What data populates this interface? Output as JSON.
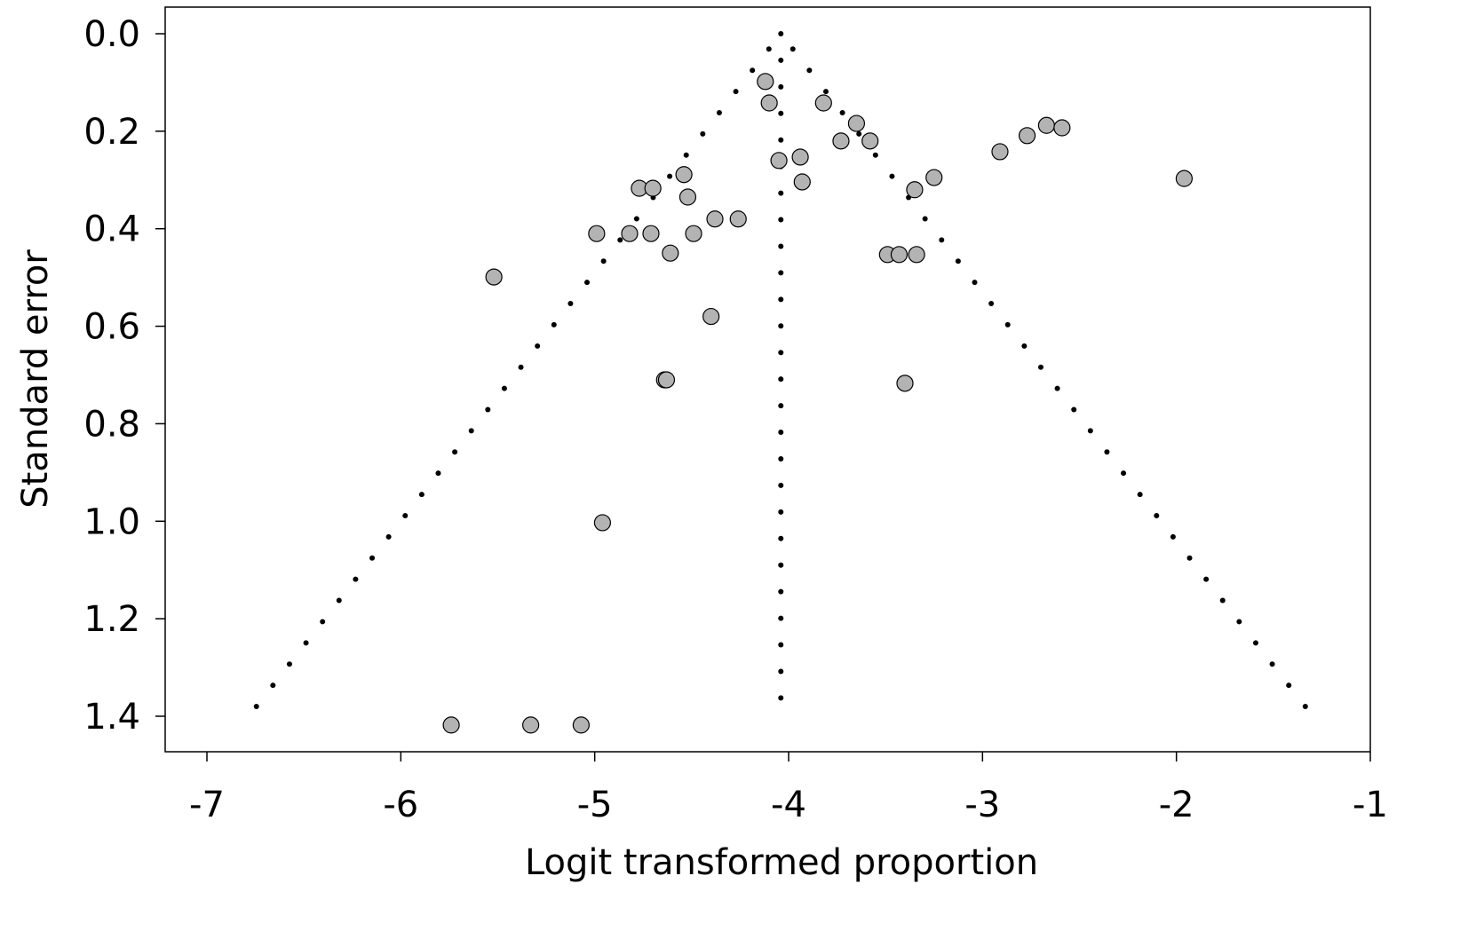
{
  "chart_data": {
    "type": "scatter",
    "title": "",
    "xlabel": "Logit transformed proportion",
    "ylabel": "Standard error",
    "xlim": [
      -7,
      -1
    ],
    "ylim": [
      0,
      1.4
    ],
    "y_inverted": true,
    "xticks": [
      -7,
      -6,
      -5,
      -4,
      -3,
      -2,
      -1
    ],
    "xtick_labels": [
      "-7",
      "-6",
      "-5",
      "-4",
      "-3",
      "-2",
      "-1"
    ],
    "yticks": [
      0,
      0.2,
      0.4,
      0.6,
      0.8,
      1.0,
      1.2,
      1.4
    ],
    "ytick_labels": [
      "0.0",
      "0.2",
      "0.4",
      "0.6",
      "0.8",
      "1.0",
      "1.2",
      "1.4"
    ],
    "grid": false,
    "funnel": {
      "center": -4.04,
      "z": 1.96,
      "max_se": 1.38,
      "style": "dotted"
    },
    "point_color": "#b3b3b3",
    "points": [
      {
        "x": -4.12,
        "y": 0.098
      },
      {
        "x": -4.1,
        "y": 0.142
      },
      {
        "x": -3.82,
        "y": 0.142
      },
      {
        "x": -3.65,
        "y": 0.184
      },
      {
        "x": -3.58,
        "y": 0.22
      },
      {
        "x": -3.73,
        "y": 0.22
      },
      {
        "x": -3.94,
        "y": 0.253
      },
      {
        "x": -4.05,
        "y": 0.26
      },
      {
        "x": -3.93,
        "y": 0.304
      },
      {
        "x": -3.25,
        "y": 0.295
      },
      {
        "x": -3.35,
        "y": 0.32
      },
      {
        "x": -2.91,
        "y": 0.242
      },
      {
        "x": -2.77,
        "y": 0.209
      },
      {
        "x": -2.67,
        "y": 0.188
      },
      {
        "x": -2.59,
        "y": 0.193
      },
      {
        "x": -1.96,
        "y": 0.297
      },
      {
        "x": -4.54,
        "y": 0.289
      },
      {
        "x": -4.77,
        "y": 0.317
      },
      {
        "x": -4.7,
        "y": 0.317
      },
      {
        "x": -4.52,
        "y": 0.335
      },
      {
        "x": -4.38,
        "y": 0.38
      },
      {
        "x": -4.26,
        "y": 0.38
      },
      {
        "x": -4.99,
        "y": 0.41
      },
      {
        "x": -4.82,
        "y": 0.41
      },
      {
        "x": -4.71,
        "y": 0.41
      },
      {
        "x": -4.49,
        "y": 0.41
      },
      {
        "x": -4.61,
        "y": 0.45
      },
      {
        "x": -3.49,
        "y": 0.453
      },
      {
        "x": -3.43,
        "y": 0.453
      },
      {
        "x": -3.34,
        "y": 0.453
      },
      {
        "x": -5.52,
        "y": 0.499
      },
      {
        "x": -4.4,
        "y": 0.58
      },
      {
        "x": -4.64,
        "y": 0.71
      },
      {
        "x": -4.63,
        "y": 0.71
      },
      {
        "x": -3.4,
        "y": 0.717
      },
      {
        "x": -4.96,
        "y": 1.003
      },
      {
        "x": -5.74,
        "y": 1.418
      },
      {
        "x": -5.33,
        "y": 1.418
      },
      {
        "x": -5.07,
        "y": 1.418
      }
    ]
  }
}
